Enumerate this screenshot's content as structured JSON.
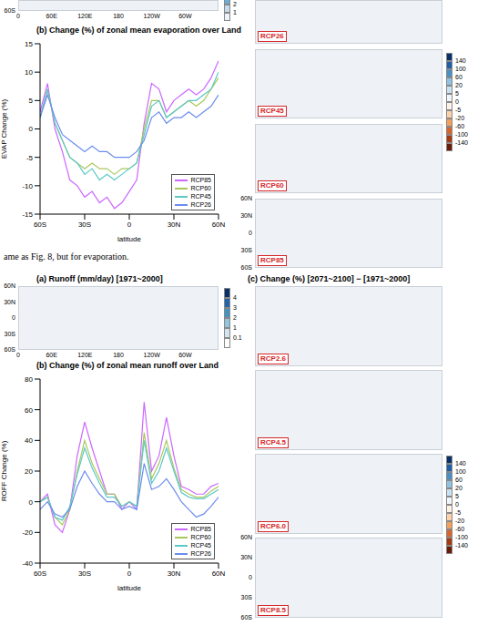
{
  "chart_data": [
    {
      "type": "line",
      "title": "(b) Change (%) of zonal mean evaporation over Land",
      "x_label": "latitude",
      "y_label": "EVAP Change (%)",
      "x": [
        -60,
        -55,
        -50,
        -45,
        -40,
        -35,
        -30,
        -25,
        -20,
        -15,
        -10,
        -5,
        0,
        5,
        10,
        15,
        20,
        25,
        30,
        35,
        40,
        45,
        50,
        55,
        60
      ],
      "xlim": [
        -60,
        60
      ],
      "xticks": [
        {
          "value": -60,
          "label": "60S"
        },
        {
          "value": -30,
          "label": "30S"
        },
        0,
        {
          "value": 30,
          "label": "30N"
        },
        {
          "value": 60,
          "label": "60N"
        }
      ],
      "ylim": [
        -15,
        15
      ],
      "yticks": [
        -15,
        -10,
        -5,
        0,
        5,
        10,
        15
      ],
      "grid": false,
      "legend": "bottom-right",
      "series": [
        {
          "name": "RCP85",
          "color": "#cc66ff",
          "values": [
            3,
            8,
            0,
            -4,
            -9,
            -10,
            -12,
            -11,
            -13,
            -12,
            -14,
            -13,
            -11,
            -9,
            1,
            8,
            7,
            3,
            5,
            6,
            7,
            6,
            7,
            9,
            12
          ]
        },
        {
          "name": "RCP60",
          "color": "#a8c85a",
          "values": [
            2,
            7,
            1,
            -2,
            -5,
            -6,
            -7,
            -6,
            -7,
            -7,
            -8,
            -7,
            -7,
            -6,
            0,
            5,
            5,
            2,
            3,
            4,
            5,
            4,
            5,
            7,
            9
          ]
        },
        {
          "name": "RCP45",
          "color": "#5cc8c8",
          "values": [
            2,
            7,
            1,
            -2,
            -5,
            -6,
            -8,
            -7,
            -9,
            -8,
            -9,
            -8,
            -7,
            -6,
            -1,
            4,
            5,
            2,
            3,
            4,
            5,
            5,
            6,
            7,
            10
          ]
        },
        {
          "name": "RCP26",
          "color": "#6b8cf0",
          "values": [
            2,
            6,
            2,
            -1,
            -2,
            -3,
            -4,
            -3,
            -4,
            -4,
            -5,
            -5,
            -5,
            -4,
            -2,
            2,
            3,
            1,
            2,
            2,
            3,
            2,
            3,
            4,
            6
          ]
        }
      ]
    },
    {
      "type": "line",
      "title": "(b) Change (%) of zonal mean runoff over Land",
      "x_label": "latitude",
      "y_label": "ROFF Change (%)",
      "x": [
        -60,
        -55,
        -50,
        -45,
        -40,
        -35,
        -30,
        -25,
        -20,
        -15,
        -10,
        -5,
        0,
        5,
        10,
        15,
        20,
        25,
        30,
        35,
        40,
        45,
        50,
        55,
        60
      ],
      "xlim": [
        -60,
        60
      ],
      "xticks": [
        {
          "value": -60,
          "label": "60S"
        },
        {
          "value": -30,
          "label": "30S"
        },
        0,
        {
          "value": 30,
          "label": "30N"
        },
        {
          "value": 60,
          "label": "60N"
        }
      ],
      "ylim": [
        -40,
        80
      ],
      "yticks": [
        -40,
        -20,
        0,
        20,
        40,
        60,
        80
      ],
      "grid": false,
      "legend": "bottom-right",
      "series": [
        {
          "name": "RCP85",
          "color": "#cc66ff",
          "values": [
            0,
            5,
            -15,
            -20,
            -5,
            30,
            52,
            35,
            20,
            5,
            5,
            -5,
            0,
            -5,
            65,
            20,
            30,
            55,
            30,
            10,
            8,
            5,
            5,
            10,
            12
          ]
        },
        {
          "name": "RCP60",
          "color": "#a8c85a",
          "values": [
            0,
            3,
            -10,
            -15,
            -5,
            20,
            40,
            25,
            15,
            5,
            5,
            -3,
            0,
            -3,
            45,
            15,
            25,
            40,
            22,
            8,
            5,
            3,
            3,
            7,
            10
          ]
        },
        {
          "name": "RCP45",
          "color": "#5cc8c8",
          "values": [
            0,
            3,
            -10,
            -12,
            -3,
            18,
            35,
            22,
            12,
            3,
            3,
            -3,
            0,
            -3,
            40,
            12,
            20,
            35,
            20,
            6,
            3,
            2,
            2,
            5,
            8
          ]
        },
        {
          "name": "RCP26",
          "color": "#6b8cf0",
          "values": [
            -5,
            0,
            -8,
            -10,
            -5,
            10,
            20,
            12,
            5,
            0,
            0,
            -5,
            -3,
            -5,
            25,
            8,
            10,
            15,
            8,
            0,
            -5,
            -10,
            -8,
            -3,
            3
          ]
        }
      ]
    }
  ],
  "figures": {
    "evaporation": {
      "caption": "ame as Fig. 8, but for evaporation.",
      "map_a": {
        "lat_ticks": [
          "60S"
        ],
        "lon_ticks": [
          "0",
          "60E",
          "120E",
          "180",
          "120W",
          "60W"
        ],
        "colorbar": {
          "ticks": [
            2,
            1
          ],
          "colors": [
            "#6baed6",
            "#c6dbef",
            "#eff3ff"
          ]
        }
      },
      "map_c": {
        "panels": [
          "RCP26",
          "RCP45",
          "RCP60",
          "RCP85"
        ],
        "lat_ticks": [
          "60N",
          "30N",
          "0",
          "30S",
          "60S"
        ],
        "colorbar": {
          "ticks": [
            140,
            100,
            60,
            20,
            5,
            0,
            -5,
            -20,
            -60,
            -100,
            -140
          ],
          "colors": [
            "#08306b",
            "#1f5fa8",
            "#4a90c8",
            "#8fc2e3",
            "#c7e2f2",
            "#eef6fb",
            "#fdf1e6",
            "#fbd2a8",
            "#f4a05a",
            "#d8662a",
            "#a83a12",
            "#6b1a06"
          ]
        }
      }
    },
    "runoff": {
      "map_a": {
        "title": "(a) Runoff (mm/day) [1971~2000]",
        "lat_ticks": [
          "60N",
          "30N",
          "0",
          "30S",
          "60S"
        ],
        "lon_ticks": [
          "0",
          "60E",
          "120E",
          "180",
          "120W",
          "60W"
        ],
        "colorbar": {
          "ticks": [
            4,
            3,
            2,
            1,
            0.1
          ],
          "colors": [
            "#08306b",
            "#2166ac",
            "#4393c3",
            "#92c5de",
            "#d1e5f0",
            "#ffffff"
          ]
        }
      },
      "map_c": {
        "title": "(c) Change (%) [2071~2100] − [1971~2000]",
        "panels": [
          "RCP2.6",
          "RCP4.5",
          "RCP6.0",
          "RCP8.5"
        ],
        "lat_ticks": [
          "60N",
          "30N",
          "0",
          "30S",
          "60S"
        ],
        "colorbar": {
          "ticks": [
            140,
            100,
            60,
            20,
            5,
            0,
            -5,
            -20,
            -60,
            -100,
            -140
          ],
          "colors": [
            "#08306b",
            "#1f5fa8",
            "#4a90c8",
            "#8fc2e3",
            "#c7e2f2",
            "#eef6fb",
            "#fdf1e6",
            "#fbd2a8",
            "#f4a05a",
            "#d8662a",
            "#a83a12",
            "#6b1a06"
          ]
        }
      }
    }
  }
}
